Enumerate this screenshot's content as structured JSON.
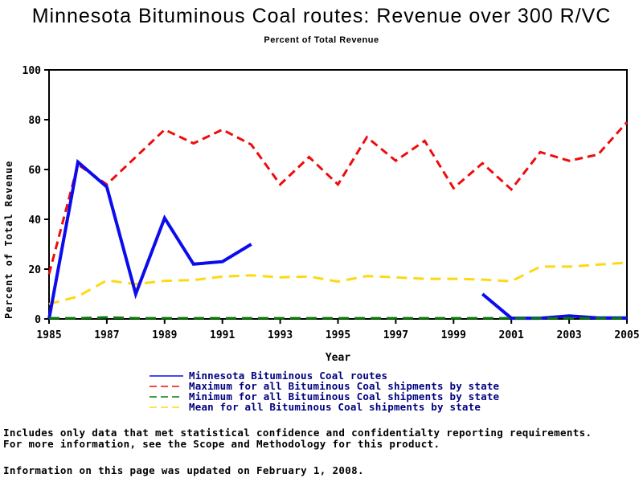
{
  "title": "Minnesota Bituminous Coal routes: Revenue over 300 R/VC",
  "subtitle": "Percent of Total Revenue",
  "chart_data": {
    "type": "line",
    "title": "Minnesota Bituminous Coal routes: Revenue over 300 R/VC",
    "subtitle": "Percent of Total Revenue",
    "xlabel": "Year",
    "ylabel": "Percent of Total Revenue",
    "xlim": [
      1985,
      2005
    ],
    "ylim": [
      0,
      100
    ],
    "xticks": [
      1985,
      1987,
      1989,
      1991,
      1993,
      1995,
      1997,
      1999,
      2001,
      2003,
      2005
    ],
    "yticks": [
      0,
      20,
      40,
      60,
      80,
      100
    ],
    "grid": false,
    "legend_position": "bottom",
    "x": [
      1985,
      1986,
      1987,
      1988,
      1989,
      1990,
      1991,
      1992,
      1993,
      1994,
      1995,
      1996,
      1997,
      1998,
      1999,
      2000,
      2001,
      2002,
      2003,
      2004,
      2005
    ],
    "series": [
      {
        "name": "Minnesota Bituminous Coal routes",
        "color": "#0b0bee",
        "dash": "solid",
        "width": 4,
        "values": [
          0,
          63,
          53,
          10,
          40.5,
          22,
          23,
          30,
          null,
          null,
          null,
          null,
          null,
          null,
          null,
          10,
          0.3,
          0.3,
          1.2,
          0.4,
          0.4
        ]
      },
      {
        "name": "Maximum for all Bituminous Coal shipments by state",
        "color": "#ee0c0c",
        "dash": "10 6",
        "width": 3,
        "values": [
          18,
          62,
          54,
          65,
          76,
          70.5,
          76,
          70,
          54,
          65,
          54,
          73,
          63.5,
          71.5,
          52.5,
          62.5,
          52,
          67,
          63.5,
          66,
          79
        ]
      },
      {
        "name": "Minimum for all Bituminous Coal shipments by state",
        "color": "#067a06",
        "dash": "13 7",
        "width": 3,
        "values": [
          0.3,
          0.3,
          0.6,
          0.3,
          0.3,
          0.3,
          0.3,
          0.3,
          0.3,
          0.3,
          0.3,
          0.3,
          0.3,
          0.3,
          0.3,
          0.3,
          0.3,
          0.3,
          0.3,
          0.3,
          0.3
        ]
      },
      {
        "name": "Mean for all Bituminous Coal shipments by state",
        "color": "#ffd814",
        "dash": "13 8",
        "width": 3,
        "values": [
          6,
          9,
          15.5,
          14,
          15.3,
          15.6,
          17,
          17.5,
          16.7,
          17,
          15,
          17.2,
          16.7,
          16.1,
          16.1,
          15.8,
          15.1,
          21,
          21,
          21.8,
          22.6
        ]
      }
    ],
    "draw_order": [
      1,
      3,
      0,
      2
    ]
  },
  "legend": {
    "text_color": "#000080"
  },
  "footnotes": {
    "line1": "Includes only data that met statistical confidence and confidentialty reporting requirements.",
    "line2": "For more information, see the Scope and Methodology for this product.",
    "line3": "Information on this page was updated on February 1, 2008."
  }
}
